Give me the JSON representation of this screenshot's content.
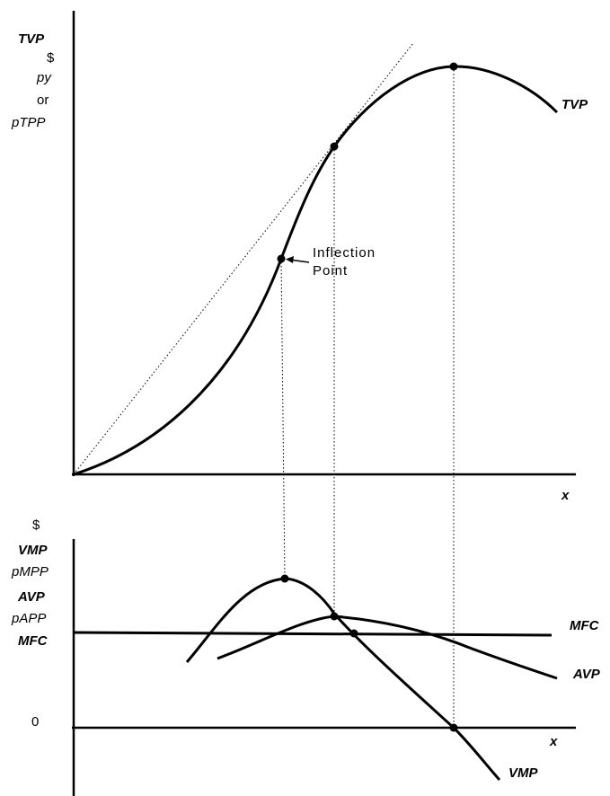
{
  "top_panel": {
    "y_labels": {
      "tvp": "TVP",
      "dollar": "$",
      "py": "py",
      "or": "or",
      "ptpp": "pTPP"
    },
    "x_label": "x",
    "curve_label": "TVP",
    "annotation": {
      "line1": "Inflection",
      "line2": "Point"
    }
  },
  "bottom_panel": {
    "y_labels": {
      "dollar": "$",
      "vmp": "VMP",
      "pmpp": "pMPP",
      "avp": "AVP",
      "papp": "pAPP",
      "mfc": "MFC",
      "zero": "0"
    },
    "x_label": "x",
    "curve_labels": {
      "mfc": "MFC",
      "avp": "AVP",
      "vmp": "VMP"
    }
  },
  "colors": {
    "ink": "#000000",
    "background": "#ffffff"
  }
}
